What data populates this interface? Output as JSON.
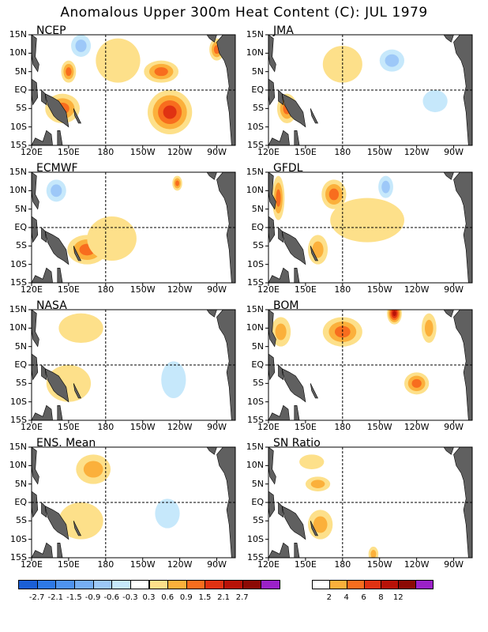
{
  "title": "Anomalous Upper 300m Heat Content (C): JUL 1979",
  "map": {
    "x_ticks": [
      "120E",
      "150E",
      "180",
      "150W",
      "120W",
      "90W"
    ],
    "y_ticks": [
      "15N",
      "10N",
      "5N",
      "EQ",
      "5S",
      "10S",
      "15S"
    ],
    "lon_range": [
      120,
      285
    ],
    "lat_range": [
      -15,
      15
    ],
    "land_color": "#606060"
  },
  "panels": [
    {
      "label": "NCEP",
      "blobs": [
        {
          "lon": 145,
          "lat": -5,
          "rx": 14,
          "ry": 4,
          "level": 3
        },
        {
          "lon": 232,
          "lat": -6,
          "rx": 18,
          "ry": 6,
          "level": 4
        },
        {
          "lon": 225,
          "lat": 5,
          "rx": 14,
          "ry": 3,
          "level": 3
        },
        {
          "lon": 150,
          "lat": 5,
          "rx": 6,
          "ry": 3,
          "level": 3
        },
        {
          "lon": 270,
          "lat": 11,
          "rx": 6,
          "ry": 3,
          "level": 3
        },
        {
          "lon": 190,
          "lat": 8,
          "rx": 18,
          "ry": 6,
          "level": 1
        },
        {
          "lon": 160,
          "lat": 12,
          "rx": 8,
          "ry": 3,
          "level": -2
        }
      ]
    },
    {
      "label": "JMA",
      "blobs": [
        {
          "lon": 135,
          "lat": -5,
          "rx": 8,
          "ry": 4,
          "level": 3
        },
        {
          "lon": 180,
          "lat": 7,
          "rx": 16,
          "ry": 5,
          "level": 1
        },
        {
          "lon": 220,
          "lat": 8,
          "rx": 10,
          "ry": 3,
          "level": -2
        },
        {
          "lon": 255,
          "lat": -3,
          "rx": 10,
          "ry": 3,
          "level": -1
        }
      ]
    },
    {
      "label": "ECMWF",
      "blobs": [
        {
          "lon": 165,
          "lat": -6,
          "rx": 16,
          "ry": 4,
          "level": 3
        },
        {
          "lon": 185,
          "lat": -3,
          "rx": 20,
          "ry": 6,
          "level": 1
        },
        {
          "lon": 140,
          "lat": 10,
          "rx": 8,
          "ry": 3,
          "level": -2
        },
        {
          "lon": 238,
          "lat": 12,
          "rx": 4,
          "ry": 2,
          "level": 3
        }
      ]
    },
    {
      "label": "GFDL",
      "blobs": [
        {
          "lon": 128,
          "lat": 8,
          "rx": 5,
          "ry": 6,
          "level": 3
        },
        {
          "lon": 173,
          "lat": 9,
          "rx": 10,
          "ry": 4,
          "level": 3
        },
        {
          "lon": 160,
          "lat": -6,
          "rx": 8,
          "ry": 4,
          "level": 2
        },
        {
          "lon": 215,
          "lat": 11,
          "rx": 6,
          "ry": 3,
          "level": -2
        },
        {
          "lon": 200,
          "lat": 2,
          "rx": 30,
          "ry": 6,
          "level": 1
        }
      ]
    },
    {
      "label": "NASA",
      "blobs": [
        {
          "lon": 160,
          "lat": 10,
          "rx": 18,
          "ry": 4,
          "level": 1
        },
        {
          "lon": 150,
          "lat": -5,
          "rx": 18,
          "ry": 5,
          "level": 1
        },
        {
          "lon": 235,
          "lat": -4,
          "rx": 10,
          "ry": 5,
          "level": -1
        }
      ]
    },
    {
      "label": "BOM",
      "blobs": [
        {
          "lon": 180,
          "lat": 9,
          "rx": 16,
          "ry": 4,
          "level": 3
        },
        {
          "lon": 222,
          "lat": 14,
          "rx": 6,
          "ry": 3,
          "level": 5
        },
        {
          "lon": 240,
          "lat": -5,
          "rx": 10,
          "ry": 3,
          "level": 3
        },
        {
          "lon": 130,
          "lat": 9,
          "rx": 8,
          "ry": 4,
          "level": 2
        },
        {
          "lon": 250,
          "lat": 10,
          "rx": 6,
          "ry": 4,
          "level": 2
        }
      ]
    },
    {
      "label": "ENS. Mean",
      "blobs": [
        {
          "lon": 170,
          "lat": 9,
          "rx": 14,
          "ry": 4,
          "level": 2
        },
        {
          "lon": 160,
          "lat": -5,
          "rx": 18,
          "ry": 5,
          "level": 1
        },
        {
          "lon": 230,
          "lat": -3,
          "rx": 10,
          "ry": 4,
          "level": -1
        }
      ]
    },
    {
      "label": "SN Ratio",
      "blobs": [
        {
          "lon": 162,
          "lat": -6,
          "rx": 10,
          "ry": 4,
          "level": 2
        },
        {
          "lon": 160,
          "lat": 5,
          "rx": 10,
          "ry": 2,
          "level": 2
        },
        {
          "lon": 155,
          "lat": 11,
          "rx": 10,
          "ry": 2,
          "level": 1
        },
        {
          "lon": 205,
          "lat": -14,
          "rx": 4,
          "ry": 2,
          "level": 2
        }
      ]
    }
  ],
  "colorbar_left": {
    "colors": [
      "#1b5fd6",
      "#2e79e6",
      "#4f93ef",
      "#76aef4",
      "#9dc8f8",
      "#c6e8fb",
      "#ffffff",
      "#fde08a",
      "#fbb03b",
      "#f86d1e",
      "#e03212",
      "#b81208",
      "#8c0a05",
      "#9b21c8"
    ],
    "ticks": [
      "-2.7",
      "-2.1",
      "-1.5",
      "-0.9",
      "-0.6",
      "-0.3",
      "0.3",
      "0.6",
      "0.9",
      "1.5",
      "2.1",
      "2.7"
    ]
  },
  "colorbar_right": {
    "colors": [
      "#ffffff",
      "#fbb03b",
      "#f86d1e",
      "#e03212",
      "#b81208",
      "#8c0a05",
      "#9b21c8"
    ],
    "ticks": [
      "2",
      "4",
      "6",
      "8",
      "12"
    ]
  }
}
